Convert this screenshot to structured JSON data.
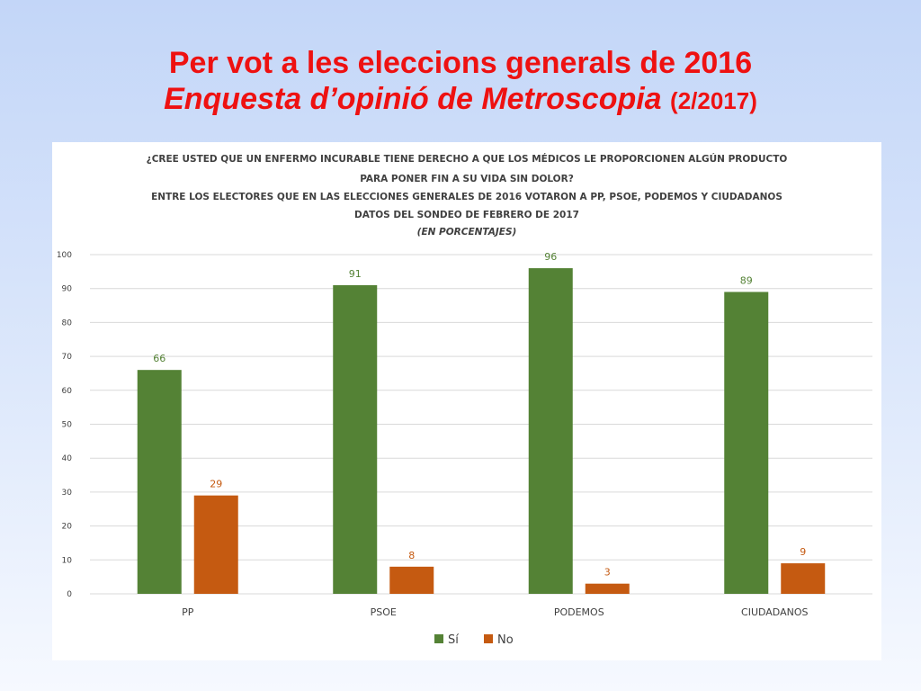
{
  "slide": {
    "title_line1": "Per vot a les eleccions generals de 2016",
    "title_line2_main": "Enquesta d’opinió de Metroscopia",
    "title_line2_date": "(2/2017)"
  },
  "chart_data": {
    "type": "bar",
    "header_lines": [
      "¿CREE USTED QUE UN ENFERMO INCURABLE TIENE DERECHO A QUE LOS MÉDICOS LE PROPORCIONEN ALGÚN PRODUCTO",
      "PARA PONER FIN A SU VIDA SIN DOLOR?",
      "ENTRE LOS ELECTORES QUE EN LAS ELECCIONES GENERALES DE 2016 VOTARON A PP, PSOE, PODEMOS Y CIUDADANOS",
      "DATOS DEL SONDEO DE FEBRERO DE 2017",
      "(EN PORCENTAJES)"
    ],
    "categories": [
      "PP",
      "PSOE",
      "PODEMOS",
      "CIUDADANOS"
    ],
    "series": [
      {
        "name": "Sí",
        "color": "#548235",
        "label_color": "#548235",
        "values": [
          66,
          91,
          96,
          89
        ]
      },
      {
        "name": "No",
        "color": "#c55a11",
        "label_color": "#c55a11",
        "values": [
          29,
          8,
          3,
          9
        ]
      }
    ],
    "ylim": [
      0,
      100
    ],
    "yticks": [
      0,
      10,
      20,
      30,
      40,
      50,
      60,
      70,
      80,
      90,
      100
    ],
    "grid": true,
    "legend_position": "bottom",
    "xlabel": "",
    "ylabel": ""
  }
}
